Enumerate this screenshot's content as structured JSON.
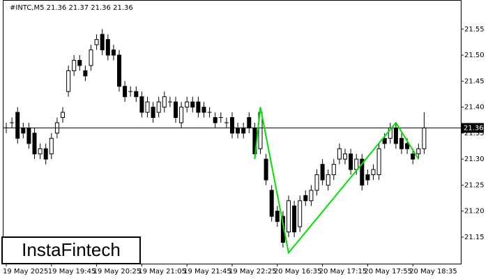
{
  "chart_data": {
    "type": "candlestick",
    "title": "#INTC,M5  21.36 21.37 21.36 21.36",
    "brand": "InstaFintech",
    "categories": [
      "19 May 2025",
      null,
      null,
      null,
      null,
      null,
      null,
      null,
      "19 May 19:45",
      null,
      null,
      null,
      null,
      null,
      null,
      null,
      "19 May 20:25",
      null,
      null,
      null,
      null,
      null,
      null,
      null,
      "19 May 21:05",
      null,
      null,
      null,
      null,
      null,
      null,
      null,
      "19 May 21:45",
      null,
      null,
      null,
      null,
      null,
      null,
      null,
      "19 May 22:25",
      null,
      null,
      null,
      null,
      null,
      null,
      null,
      "20 May 16:35",
      null,
      null,
      null,
      null,
      null,
      null,
      null,
      "20 May 17:15",
      null,
      null,
      null,
      null,
      null,
      null,
      null,
      "20 May 17:55",
      null,
      null,
      null,
      null,
      null,
      null,
      null,
      "20 May 18:35",
      null,
      null
    ],
    "open": [
      21.36,
      21.37,
      21.39,
      21.36,
      21.36,
      21.35,
      21.31,
      21.32,
      21.31,
      21.35,
      21.38,
      21.43,
      21.47,
      21.49,
      21.47,
      21.48,
      21.52,
      21.54,
      21.53,
      21.51,
      21.5,
      21.44,
      21.43,
      21.43,
      21.42,
      21.39,
      21.4,
      21.39,
      21.4,
      21.41,
      21.41,
      21.37,
      21.4,
      21.41,
      21.41,
      21.4,
      21.39,
      21.38,
      21.38,
      21.37,
      21.38,
      21.36,
      21.36,
      21.38,
      21.36,
      21.32,
      21.3,
      21.24,
      21.2,
      21.19,
      21.16,
      21.21,
      21.17,
      21.23,
      21.22,
      21.24,
      21.29,
      21.25,
      21.27,
      21.3,
      21.3,
      21.31,
      21.28,
      21.3,
      21.27,
      21.27,
      21.27,
      21.34,
      21.34,
      21.36,
      21.34,
      21.33,
      21.31,
      21.31,
      21.32
    ],
    "high": [
      21.37,
      21.38,
      21.4,
      21.37,
      21.37,
      21.36,
      21.33,
      21.33,
      21.35,
      21.38,
      21.4,
      21.48,
      21.5,
      21.5,
      21.48,
      21.52,
      21.54,
      21.55,
      21.54,
      21.52,
      21.51,
      21.45,
      21.44,
      21.44,
      21.43,
      21.42,
      21.41,
      21.42,
      21.43,
      21.42,
      21.42,
      21.41,
      21.42,
      21.42,
      21.42,
      21.41,
      21.4,
      21.39,
      21.39,
      21.38,
      21.39,
      21.37,
      21.37,
      21.39,
      21.37,
      21.4,
      21.31,
      21.25,
      21.21,
      21.2,
      21.23,
      21.22,
      21.23,
      21.24,
      21.25,
      21.28,
      21.3,
      21.28,
      21.3,
      21.33,
      21.32,
      21.32,
      21.31,
      21.31,
      21.28,
      21.29,
      21.33,
      21.35,
      21.37,
      21.37,
      21.35,
      21.34,
      21.32,
      21.33,
      21.39
    ],
    "low": [
      21.35,
      21.36,
      21.33,
      21.34,
      21.32,
      21.3,
      21.3,
      21.29,
      21.3,
      21.34,
      21.37,
      21.42,
      21.46,
      21.47,
      21.45,
      21.47,
      21.51,
      21.5,
      21.49,
      21.49,
      21.43,
      21.41,
      21.42,
      21.41,
      21.38,
      21.38,
      21.37,
      21.38,
      21.39,
      21.4,
      21.37,
      21.36,
      21.39,
      21.39,
      21.38,
      21.38,
      21.38,
      21.36,
      21.37,
      21.36,
      21.34,
      21.34,
      21.34,
      21.35,
      21.3,
      21.31,
      21.25,
      21.18,
      21.17,
      21.13,
      21.15,
      21.15,
      21.16,
      21.21,
      21.21,
      21.23,
      21.25,
      21.24,
      21.26,
      21.29,
      21.29,
      21.27,
      21.27,
      21.24,
      21.25,
      21.26,
      21.26,
      21.32,
      21.33,
      21.32,
      21.31,
      21.31,
      21.29,
      21.3,
      21.31
    ],
    "close": [
      21.36,
      21.37,
      21.34,
      21.35,
      21.33,
      21.31,
      21.32,
      21.3,
      21.34,
      21.37,
      21.39,
      21.47,
      21.49,
      21.48,
      21.46,
      21.51,
      21.53,
      21.51,
      21.5,
      21.5,
      21.44,
      21.42,
      21.43,
      21.42,
      21.39,
      21.41,
      21.38,
      21.41,
      21.42,
      21.41,
      21.38,
      21.4,
      21.41,
      21.4,
      21.39,
      21.39,
      21.39,
      21.37,
      21.38,
      21.37,
      21.35,
      21.35,
      21.35,
      21.36,
      21.31,
      21.39,
      21.26,
      21.19,
      21.18,
      21.14,
      21.22,
      21.16,
      21.22,
      21.22,
      21.24,
      21.27,
      21.26,
      21.27,
      21.29,
      21.32,
      21.31,
      21.28,
      21.3,
      21.25,
      21.26,
      21.28,
      21.32,
      21.33,
      21.36,
      21.33,
      21.32,
      21.32,
      21.3,
      21.32,
      21.36
    ],
    "last": 21.36,
    "pattern": {
      "color": "#00e000",
      "x": [
        44,
        45,
        50,
        69,
        73
      ],
      "values": [
        21.3,
        21.4,
        21.12,
        21.37,
        21.3
      ]
    },
    "ylim": [
      21.099,
      21.606
    ],
    "yticks": [
      21.15,
      {
        "value": 21.2,
        "label": "21.20"
      },
      21.25,
      {
        "value": 21.3,
        "label": "21.30"
      },
      21.35,
      {
        "value": 21.4,
        "label": "21.40"
      },
      21.45,
      {
        "value": 21.5,
        "label": "21.50"
      },
      21.55
    ]
  }
}
